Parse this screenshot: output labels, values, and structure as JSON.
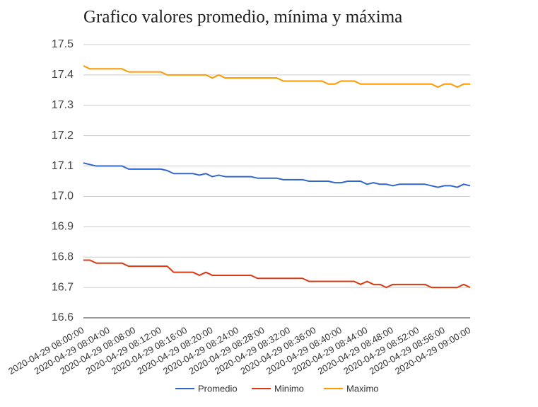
{
  "chart_data": {
    "type": "line",
    "title": "Grafico valores promedio, mínima y máxima",
    "categories": [
      "2020-04-29 08:00:00",
      null,
      null,
      null,
      "2020-04-29 08:04:00",
      null,
      null,
      null,
      "2020-04-29 08:08:00",
      null,
      null,
      null,
      "2020-04-29 08:12:00",
      null,
      null,
      null,
      "2020-04-29 08:16:00",
      null,
      null,
      null,
      "2020-04-29 08:20:00",
      null,
      null,
      null,
      "2020-04-29 08:24:00",
      null,
      null,
      null,
      "2020-04-29 08:28:00",
      null,
      null,
      null,
      "2020-04-29 08:32:00",
      null,
      null,
      null,
      "2020-04-29 08:36:00",
      null,
      null,
      null,
      "2020-04-29 08:40:00",
      null,
      null,
      null,
      "2020-04-29 08:44:00",
      null,
      null,
      null,
      "2020-04-29 08:48:00",
      null,
      null,
      null,
      "2020-04-29 08:52:00",
      null,
      null,
      null,
      "2020-04-29 08:56:00",
      null,
      null,
      null,
      "2020-04-29 09:00:00"
    ],
    "series": [
      {
        "name": "Promedio",
        "color": "#3366cc",
        "values": [
          17.11,
          17.105,
          17.1,
          17.1,
          17.1,
          17.1,
          17.1,
          17.09,
          17.09,
          17.09,
          17.09,
          17.09,
          17.09,
          17.085,
          17.075,
          17.075,
          17.075,
          17.075,
          17.07,
          17.075,
          17.065,
          17.07,
          17.065,
          17.065,
          17.065,
          17.065,
          17.065,
          17.06,
          17.06,
          17.06,
          17.06,
          17.055,
          17.055,
          17.055,
          17.055,
          17.05,
          17.05,
          17.05,
          17.05,
          17.045,
          17.045,
          17.05,
          17.05,
          17.05,
          17.04,
          17.045,
          17.04,
          17.04,
          17.035,
          17.04,
          17.04,
          17.04,
          17.04,
          17.04,
          17.035,
          17.03,
          17.035,
          17.035,
          17.03,
          17.04,
          17.035
        ]
      },
      {
        "name": "Minimo",
        "color": "#dc3912",
        "values": [
          16.79,
          16.79,
          16.78,
          16.78,
          16.78,
          16.78,
          16.78,
          16.77,
          16.77,
          16.77,
          16.77,
          16.77,
          16.77,
          16.77,
          16.75,
          16.75,
          16.75,
          16.75,
          16.74,
          16.75,
          16.74,
          16.74,
          16.74,
          16.74,
          16.74,
          16.74,
          16.74,
          16.73,
          16.73,
          16.73,
          16.73,
          16.73,
          16.73,
          16.73,
          16.73,
          16.72,
          16.72,
          16.72,
          16.72,
          16.72,
          16.72,
          16.72,
          16.72,
          16.71,
          16.72,
          16.71,
          16.71,
          16.7,
          16.71,
          16.71,
          16.71,
          16.71,
          16.71,
          16.71,
          16.7,
          16.7,
          16.7,
          16.7,
          16.7,
          16.71,
          16.7
        ]
      },
      {
        "name": "Maximo",
        "color": "#ff9900",
        "values": [
          17.43,
          17.42,
          17.42,
          17.42,
          17.42,
          17.42,
          17.42,
          17.41,
          17.41,
          17.41,
          17.41,
          17.41,
          17.41,
          17.4,
          17.4,
          17.4,
          17.4,
          17.4,
          17.4,
          17.4,
          17.39,
          17.4,
          17.39,
          17.39,
          17.39,
          17.39,
          17.39,
          17.39,
          17.39,
          17.39,
          17.39,
          17.38,
          17.38,
          17.38,
          17.38,
          17.38,
          17.38,
          17.38,
          17.37,
          17.37,
          17.38,
          17.38,
          17.38,
          17.37,
          17.37,
          17.37,
          17.37,
          17.37,
          17.37,
          17.37,
          17.37,
          17.37,
          17.37,
          17.37,
          17.37,
          17.36,
          17.37,
          17.37,
          17.36,
          17.37,
          17.37
        ]
      }
    ],
    "ylim": [
      16.6,
      17.5
    ],
    "yticks": [
      16.6,
      16.7,
      16.8,
      16.9,
      {
        "value": 17,
        "label": "17.0"
      },
      17.1,
      17.2,
      17.3,
      17.4,
      17.5
    ],
    "grid": true,
    "legend": "bottom"
  }
}
